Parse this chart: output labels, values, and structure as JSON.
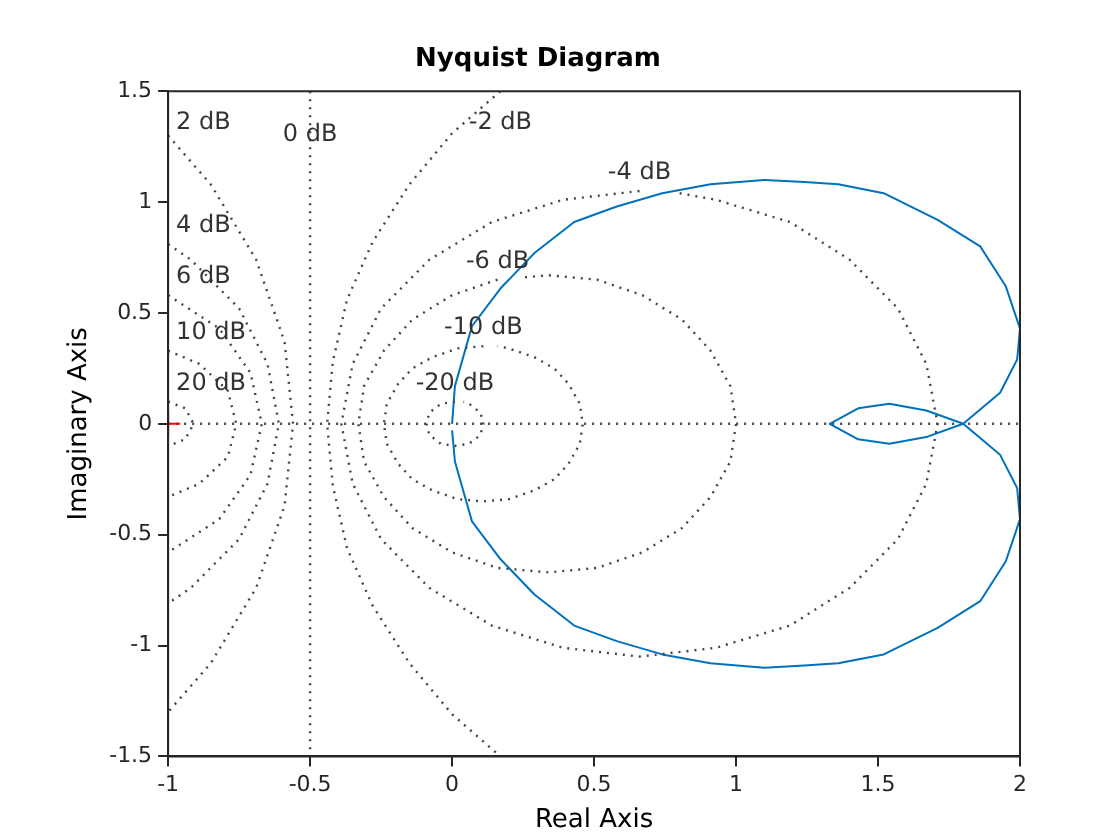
{
  "chart_data": {
    "type": "line",
    "title": "Nyquist Diagram",
    "xlabel": "Real Axis",
    "ylabel": "Imaginary Axis",
    "xlim": [
      -1,
      2
    ],
    "xticks": [
      -1,
      -0.5,
      0,
      0.5,
      1,
      1.5,
      2
    ],
    "ylim": [
      -1.5,
      1.5
    ],
    "yticks": [
      -1.5,
      -1,
      -0.5,
      0,
      0.5,
      1,
      1.5
    ],
    "legend": false,
    "ref_lines": [
      {
        "axis": "x",
        "value": -0.5,
        "label": "0 dB",
        "line_style": "dotted",
        "color": "#444444"
      },
      {
        "axis": "y",
        "value": 0,
        "line_style": "dotted",
        "color": "#444444"
      }
    ],
    "series": [
      {
        "name": "2 dB",
        "color": "#444444",
        "line_style": "dotted",
        "marker": "none",
        "x": [
          -1,
          -0.85,
          -0.69,
          -0.59,
          -0.56,
          -0.59,
          -0.69,
          -0.85,
          -1
        ],
        "values": [
          1.3,
          1.08,
          0.74,
          0.37,
          0,
          -0.37,
          -0.74,
          -1.08,
          -1.3
        ]
      },
      {
        "name": "-2 dB",
        "color": "#444444",
        "line_style": "dotted",
        "marker": "none",
        "x": [
          0.17,
          0.0,
          -0.15,
          -0.28,
          -0.37,
          -0.42,
          -0.44,
          -0.42,
          -0.37,
          -0.28,
          -0.15,
          0.0,
          0.17
        ],
        "values": [
          1.5,
          1.31,
          1.08,
          0.82,
          0.56,
          0.28,
          0,
          -0.28,
          -0.56,
          -0.82,
          -1.08,
          -1.31,
          -1.5
        ]
      },
      {
        "name": "-4 dB",
        "color": "#444444",
        "line_style": "dotted",
        "marker": "none",
        "x": [
          0.66,
          0.39,
          0.14,
          -0.08,
          -0.25,
          -0.35,
          -0.39,
          -0.35,
          -0.25,
          -0.08,
          0.14,
          0.39,
          0.66,
          0.93,
          1.19,
          1.4,
          1.57,
          1.67,
          1.71,
          1.67,
          1.57,
          1.4,
          1.19,
          0.93,
          0.8
        ],
        "values": [
          1.05,
          1.01,
          0.91,
          0.74,
          0.52,
          0.27,
          0,
          -0.27,
          -0.52,
          -0.74,
          -0.91,
          -1.01,
          -1.05,
          -1.01,
          -0.91,
          -0.74,
          -0.52,
          -0.27,
          0,
          0.27,
          0.52,
          0.74,
          0.91,
          1.01,
          1.04
        ]
      },
      {
        "name": "-6 dB",
        "color": "#444444",
        "line_style": "dotted",
        "marker": "none",
        "x": [
          0.16,
          0,
          -0.14,
          -0.24,
          -0.31,
          -0.33,
          -0.31,
          -0.24,
          -0.14,
          0,
          0.16,
          0.34,
          0.51,
          0.67,
          0.81,
          0.91,
          0.98,
          1.0,
          0.98,
          0.91,
          0.81,
          0.67,
          0.51,
          0.34,
          0.25
        ],
        "values": [
          0.65,
          0.58,
          0.47,
          0.33,
          0.17,
          0,
          -0.17,
          -0.33,
          -0.47,
          -0.58,
          -0.65,
          -0.67,
          -0.65,
          -0.58,
          -0.47,
          -0.33,
          -0.17,
          0,
          0.17,
          0.33,
          0.47,
          0.58,
          0.65,
          0.67,
          0.66
        ]
      },
      {
        "name": "-10 dB",
        "color": "#444444",
        "line_style": "dotted",
        "marker": "none",
        "x": [
          0.11,
          0.02,
          -0.07,
          -0.14,
          -0.19,
          -0.23,
          -0.24,
          -0.23,
          -0.19,
          -0.14,
          -0.07,
          0.02,
          0.11,
          0.2,
          0.29,
          0.36,
          0.41,
          0.45,
          0.46,
          0.45,
          0.41,
          0.36,
          0.29,
          0.2,
          0.16
        ],
        "values": [
          0.35,
          0.34,
          0.3,
          0.25,
          0.18,
          0.09,
          0,
          -0.09,
          -0.18,
          -0.25,
          -0.3,
          -0.34,
          -0.35,
          -0.34,
          -0.3,
          -0.25,
          -0.18,
          -0.09,
          0,
          0.09,
          0.18,
          0.25,
          0.3,
          0.34,
          0.35
        ]
      },
      {
        "name": "-20 dB",
        "color": "#444444",
        "line_style": "dotted",
        "marker": "none",
        "x": [
          0.01,
          -0.04,
          -0.08,
          -0.09,
          -0.08,
          -0.04,
          0.01,
          0.06,
          0.1,
          0.11,
          0.1,
          0.06,
          0.04
        ],
        "values": [
          0.1,
          0.09,
          0.05,
          0,
          -0.05,
          -0.09,
          -0.1,
          -0.09,
          -0.05,
          0,
          0.05,
          0.09,
          0.1
        ]
      },
      {
        "name": "4 dB",
        "color": "#444444",
        "line_style": "dotted",
        "marker": "none",
        "x": [
          -1,
          -0.92,
          -0.75,
          -0.65,
          -0.61,
          -0.65,
          -0.75,
          -0.92,
          -1
        ],
        "values": [
          0.81,
          0.74,
          0.52,
          0.27,
          0,
          -0.27,
          -0.52,
          -0.74,
          -0.81
        ]
      },
      {
        "name": "6 dB",
        "color": "#444444",
        "line_style": "dotted",
        "marker": "none",
        "x": [
          -1,
          -0.82,
          -0.71,
          -0.67,
          -0.71,
          -0.82,
          -1
        ],
        "values": [
          0.58,
          0.43,
          0.23,
          0,
          -0.23,
          -0.43,
          -0.58
        ]
      },
      {
        "name": "10 dB",
        "color": "#444444",
        "line_style": "dotted",
        "marker": "none",
        "x": [
          -1,
          -0.89,
          -0.79,
          -0.76,
          -0.79,
          -0.89,
          -1
        ],
        "values": [
          0.33,
          0.27,
          0.15,
          0,
          -0.15,
          -0.27,
          -0.33
        ]
      },
      {
        "name": "20 dB",
        "color": "#444444",
        "line_style": "dotted",
        "marker": "none",
        "x": [
          -1,
          -0.94,
          -0.91,
          -0.94,
          -1
        ],
        "values": [
          0.1,
          0.07,
          0,
          -0.07,
          -0.1
        ]
      },
      {
        "color": "#0072bd",
        "line_style": "solid",
        "marker": "none",
        "x": [
          0.0,
          0.01,
          0.07,
          0.17,
          0.29,
          0.43,
          0.58,
          0.74,
          0.91,
          1.1,
          1.24,
          1.36,
          1.52,
          1.71,
          1.86,
          1.95,
          2.0,
          1.99,
          1.93,
          1.8,
          1.67,
          1.54,
          1.43,
          1.33,
          1.43,
          1.54,
          1.67,
          1.8,
          1.93,
          1.99,
          2.0,
          1.95,
          1.86,
          1.71,
          1.52,
          1.36,
          1.24,
          1.1,
          0.91,
          0.74,
          0.58,
          0.43,
          0.29,
          0.17,
          0.07,
          0.01,
          0.0
        ],
        "values": [
          0.0,
          0.17,
          0.44,
          0.61,
          0.77,
          0.91,
          0.98,
          1.04,
          1.08,
          1.1,
          1.09,
          1.08,
          1.04,
          0.92,
          0.8,
          0.62,
          0.43,
          0.29,
          0.14,
          0.0,
          -0.06,
          -0.09,
          -0.07,
          0.0,
          0.07,
          0.09,
          0.06,
          0.0,
          -0.14,
          -0.29,
          -0.43,
          -0.62,
          -0.8,
          -0.92,
          -1.04,
          -1.08,
          -1.09,
          -1.1,
          -1.08,
          -1.04,
          -0.98,
          -0.91,
          -0.77,
          -0.61,
          -0.44,
          -0.17,
          -0.03
        ]
      },
      {
        "type": "scatter",
        "color": "#ff0000",
        "marker": "cross",
        "x": [
          -1
        ],
        "values": [
          0
        ]
      }
    ]
  }
}
